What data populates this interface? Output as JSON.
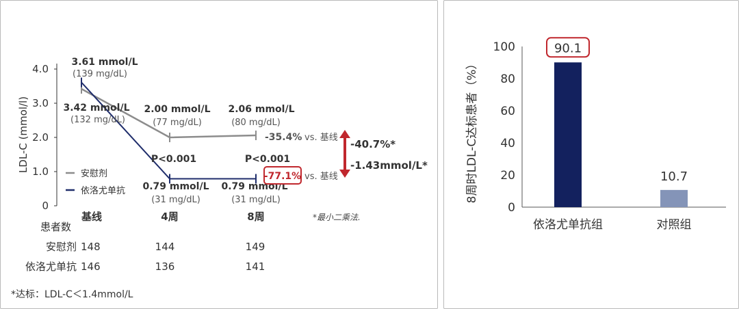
{
  "chart_data": [
    {
      "type": "line",
      "ylabel": "LDL-C (mmol/l)",
      "yticks": [
        "4.0",
        "3.0",
        "2.0",
        "1.0",
        "0"
      ],
      "ylim": [
        0,
        4
      ],
      "categories": [
        "基线",
        "4周",
        "8周"
      ],
      "legend_position": "bottom-left",
      "series": [
        {
          "name": "安慰剂",
          "color": "#8c8c8c",
          "values": [
            3.42,
            2.0,
            2.06
          ],
          "labels_mmol": [
            "3.42 mmol/L",
            "2.00 mmol/L",
            "2.06 mmol/L"
          ],
          "labels_mg": [
            "(132 mg/dL)",
            "(77 mg/dL)",
            "(80 mg/dL)"
          ]
        },
        {
          "name": "依洛尤单抗",
          "color": "#1f2d6b",
          "values": [
            3.61,
            0.79,
            0.79
          ],
          "labels_mmol": [
            "3.61 mmol/L",
            "0.79 mmol/L",
            "0.79 mmol/L"
          ],
          "labels_mg": [
            "(139 mg/dL)",
            "(31 mg/dL)",
            "(31 mg/dL)"
          ]
        }
      ],
      "pvalues": [
        "P<0.001",
        "P<0.001"
      ],
      "change_placebo": "-35.4%",
      "change_evolocumab": "-77.1%",
      "vs_baseline_label": "vs. 基线",
      "diff_pct": "-40.7%*",
      "diff_abs": "-1.43mmol/L*",
      "footnote_method": "*最小二乘法.",
      "patients_header": "患者数",
      "patients": [
        {
          "group": "安慰剂",
          "counts": [
            "148",
            "144",
            "149"
          ]
        },
        {
          "group": "依洛尤单抗",
          "counts": [
            "146",
            "136",
            "141"
          ]
        }
      ],
      "footnote": "*达标：LDL-C＜1.4mmol/L",
      "highlight_color": "#c0272d"
    },
    {
      "type": "bar",
      "ylabel": "8周时LDL-C达标患者（%）",
      "ylim": [
        0,
        100
      ],
      "yticks": [
        "100",
        "80",
        "60",
        "40",
        "20",
        "0"
      ],
      "categories": [
        "依洛尤单抗组",
        "对照组"
      ],
      "values": [
        90.1,
        10.7
      ],
      "value_labels": [
        "90.1",
        "10.7"
      ],
      "colors": [
        "#13215e",
        "#8494b8"
      ]
    }
  ]
}
